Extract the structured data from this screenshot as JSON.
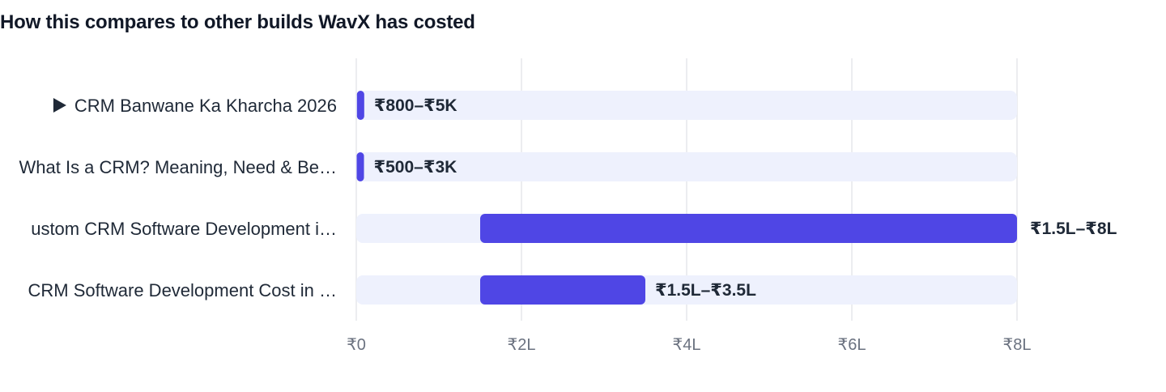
{
  "title": "How this compares to other builds WavX has costed",
  "chart_data": {
    "type": "bar",
    "orientation": "horizontal",
    "range_bars": true,
    "xlim": [
      0,
      800000
    ],
    "x_ticks": [
      0,
      200000,
      400000,
      600000,
      800000
    ],
    "x_tick_labels": [
      "₹0",
      "₹2L",
      "₹4L",
      "₹6L",
      "₹8L"
    ],
    "grid": true,
    "colors": {
      "bar": "#4f46e5",
      "track": "#eef1fd",
      "grid": "#e5e7eb"
    },
    "rows": [
      {
        "label": "CRM Banwane Ka Kharcha 2026",
        "active": true,
        "active_marker": "▶",
        "min": 800,
        "max": 5000,
        "value_label": "₹800–₹5K"
      },
      {
        "label": "What Is a CRM? Meaning, Need & Be…",
        "active": false,
        "min": 500,
        "max": 3000,
        "value_label": "₹500–₹3K"
      },
      {
        "label": "ustom CRM Software Development i…",
        "active": false,
        "min": 150000,
        "max": 800000,
        "value_label": "₹1.5L–₹8L"
      },
      {
        "label": "CRM Software Development Cost in …",
        "active": false,
        "min": 150000,
        "max": 350000,
        "value_label": "₹1.5L–₹3.5L"
      }
    ]
  }
}
